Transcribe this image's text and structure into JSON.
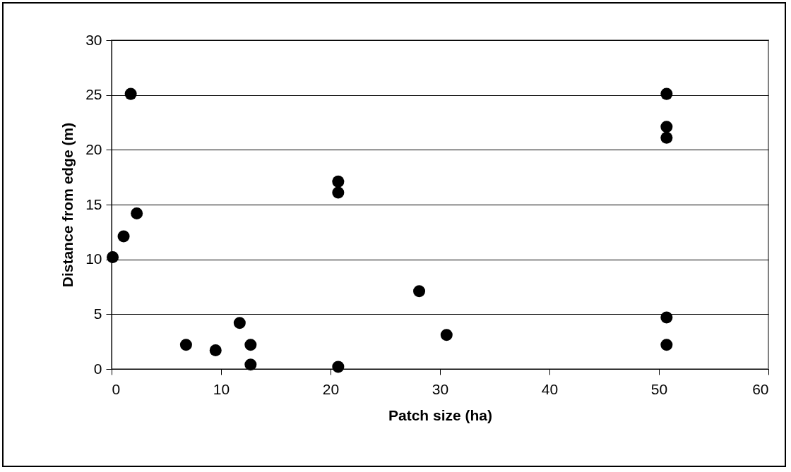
{
  "chart_data": {
    "type": "scatter",
    "xlabel": "Patch size (ha)",
    "ylabel": "Distance from edge (m)",
    "x": [
      0.1,
      1.1,
      1.75,
      2.3,
      6.8,
      9.5,
      11.7,
      12.7,
      12.7,
      20.7,
      20.7,
      20.7,
      28.1,
      30.6,
      50.7,
      50.7,
      50.7,
      50.7,
      50.7
    ],
    "series": [
      {
        "color": "#000000",
        "values": [
          10.2,
          12.1,
          25.1,
          14.2,
          2.2,
          1.7,
          4.2,
          2.2,
          0.4,
          17.1,
          16.1,
          0.2,
          7.1,
          3.1,
          25.1,
          22.1,
          21.1,
          4.7,
          2.2
        ]
      }
    ],
    "xlim": [
      0,
      60
    ],
    "xticks": [
      0,
      10,
      20,
      30,
      40,
      50,
      60
    ],
    "ylim": [
      0,
      30
    ],
    "yticks": [
      0,
      5,
      10,
      15,
      20,
      25,
      30
    ],
    "grid": "y",
    "marker": "circle"
  }
}
